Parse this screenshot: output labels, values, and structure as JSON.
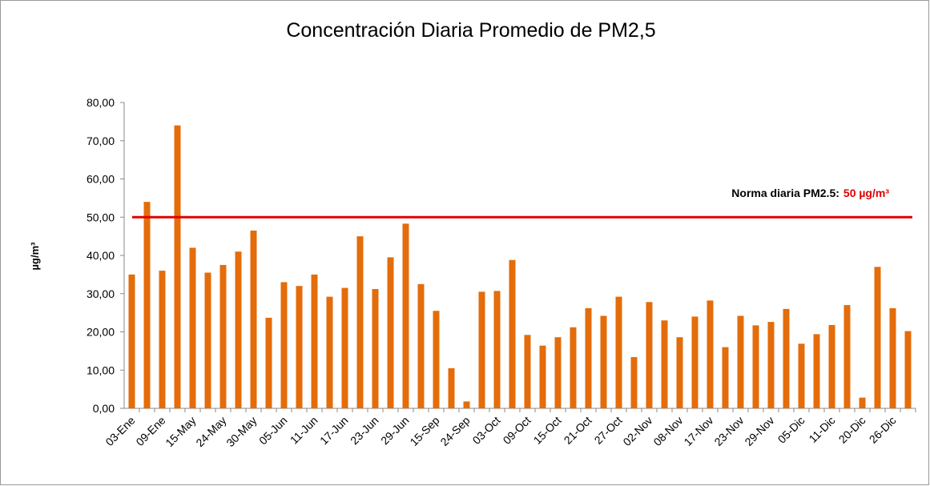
{
  "chart_data": {
    "type": "bar",
    "title": "Concentración Diaria Promedio de PM2,5",
    "ylabel": "µg/m³",
    "categories": [
      "03-Ene",
      null,
      "09-Ene",
      null,
      "15-May",
      null,
      "24-May",
      null,
      "30-May",
      null,
      "05-Jun",
      null,
      "11-Jun",
      null,
      "17-Jun",
      null,
      "23-Jun",
      null,
      "29-Jun",
      null,
      "15-Sep",
      null,
      "24-Sep",
      null,
      "03-Oct",
      null,
      "09-Oct",
      null,
      "15-Oct",
      null,
      "21-Oct",
      null,
      "27-Oct",
      null,
      "02-Nov",
      null,
      "08-Nov",
      null,
      "17-Nov",
      null,
      "23-Nov",
      null,
      "29-Nov",
      null,
      "05-Dic",
      null,
      "11-Dic",
      null,
      "20-Dic",
      null,
      "26-Dic",
      null
    ],
    "values": [
      35,
      54,
      36,
      74,
      42,
      35.5,
      37.5,
      41,
      46.5,
      23.7,
      33,
      32,
      35,
      29.2,
      31.5,
      45,
      31.2,
      39.5,
      48.3,
      32.5,
      25.5,
      10.5,
      1.8,
      30.5,
      30.7,
      38.8,
      19.2,
      16.4,
      18.6,
      21.2,
      26.2,
      24.2,
      29.2,
      13.4,
      27.8,
      23,
      18.6,
      24,
      28.2,
      16,
      24.2,
      21.7,
      22.6,
      26,
      16.9,
      19.4,
      21.8,
      27,
      2.8,
      37,
      26.2,
      20.2
    ],
    "color": "#e46c0a",
    "ylim": [
      0,
      80
    ],
    "yticks": [
      {
        "value": 0,
        "label": "0,00"
      },
      {
        "value": 10,
        "label": "10,00"
      },
      {
        "value": 20,
        "label": "20,00"
      },
      {
        "value": 30,
        "label": "30,00"
      },
      {
        "value": 40,
        "label": "40,00"
      },
      {
        "value": 50,
        "label": "50,00"
      },
      {
        "value": 60,
        "label": "60,00"
      },
      {
        "value": 70,
        "label": "70,00"
      },
      {
        "value": 80,
        "label": "80,00"
      }
    ],
    "threshold": {
      "value": 50,
      "text": "Norma diaria PM2.5:",
      "label": "50 µg/m³",
      "color": "#e00000"
    }
  }
}
